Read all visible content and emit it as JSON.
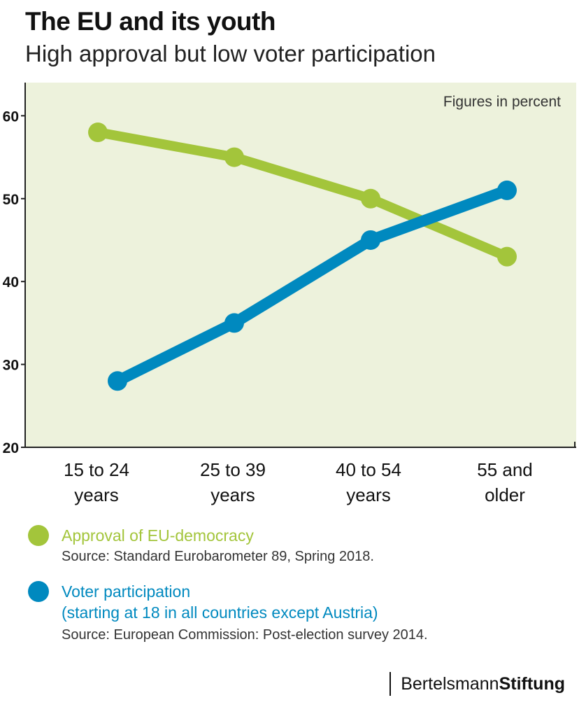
{
  "title": "The EU and its youth",
  "subtitle": "High approval but low voter participation",
  "chart_data": {
    "type": "line",
    "categories": [
      [
        "15 to 24",
        "years"
      ],
      [
        "25 to 39",
        "years"
      ],
      [
        "40 to 54",
        "years"
      ],
      [
        "55 and",
        "older"
      ]
    ],
    "series": [
      {
        "name": "Approval of EU-democracy",
        "values": [
          58,
          55,
          50,
          43
        ],
        "color": "#a3c53b"
      },
      {
        "name": "Voter participation",
        "values": [
          28,
          35,
          45,
          51
        ],
        "color": "#0089bf"
      }
    ],
    "ylim": [
      20,
      64
    ],
    "yticks": [
      20,
      30,
      40,
      50,
      60
    ],
    "annotation": "Figures in percent",
    "plot_background": "#edf2dc",
    "grid": false
  },
  "legend": {
    "approval": {
      "label": "Approval of EU-democracy",
      "source": "Source: Standard Eurobarometer 89, Spring 2018.",
      "color": "#a3c53b"
    },
    "voter": {
      "label": "Voter participation",
      "note": "(starting at 18 in all countries except Austria)",
      "source": "Source: European Commission: Post-election survey 2014.",
      "color": "#0089bf"
    }
  },
  "brand": {
    "part1": "Bertelsmann",
    "part2": "Stiftung"
  }
}
